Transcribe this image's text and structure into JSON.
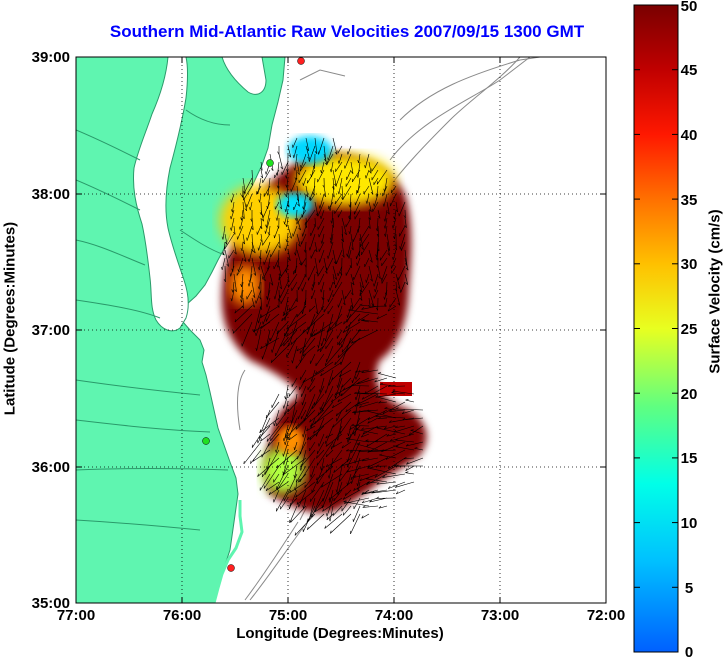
{
  "title": "Southern Mid-Atlantic Raw Velocities 2007/09/15 1300 GMT",
  "xlabel": "Longitude (Degrees:Minutes)",
  "ylabel": "Latitude (Degrees:Minutes)",
  "colorbar_label": "Surface Velocity (cm/s)",
  "x_ticks": [
    "77:00",
    "76:00",
    "75:00",
    "74:00",
    "73:00",
    "72:00"
  ],
  "y_ticks": [
    "39:00",
    "38:00",
    "37:00",
    "36:00",
    "35:00"
  ],
  "colorbar_ticks": [
    "50",
    "45",
    "40",
    "35",
    "30",
    "25",
    "20",
    "15",
    "10",
    "5",
    "0"
  ],
  "colors": {
    "land": "#5ff5b0",
    "land_outline": "#2a9a6a",
    "title": "#0000ff",
    "contour": "#8a8a8a"
  },
  "chart_data": {
    "type": "map",
    "title": "Southern Mid-Atlantic Raw Velocities 2007/09/15 1300 GMT",
    "xlabel": "Longitude (Degrees:Minutes)",
    "ylabel": "Latitude (Degrees:Minutes)",
    "xlim": [
      -77.0,
      -72.0
    ],
    "ylim": [
      35.0,
      39.0
    ],
    "grid": true,
    "colorbar": {
      "label": "Surface Velocity (cm/s)",
      "range": [
        0,
        50
      ],
      "colormap": "jet"
    },
    "stations": [
      {
        "lon": -74.85,
        "lat": 38.97,
        "color": "red"
      },
      {
        "lon": -75.1,
        "lat": 38.22,
        "color": "green"
      },
      {
        "lon": -75.7,
        "lat": 36.18,
        "color": "green"
      },
      {
        "lon": -75.47,
        "lat": 35.25,
        "color": "red"
      }
    ]
  }
}
